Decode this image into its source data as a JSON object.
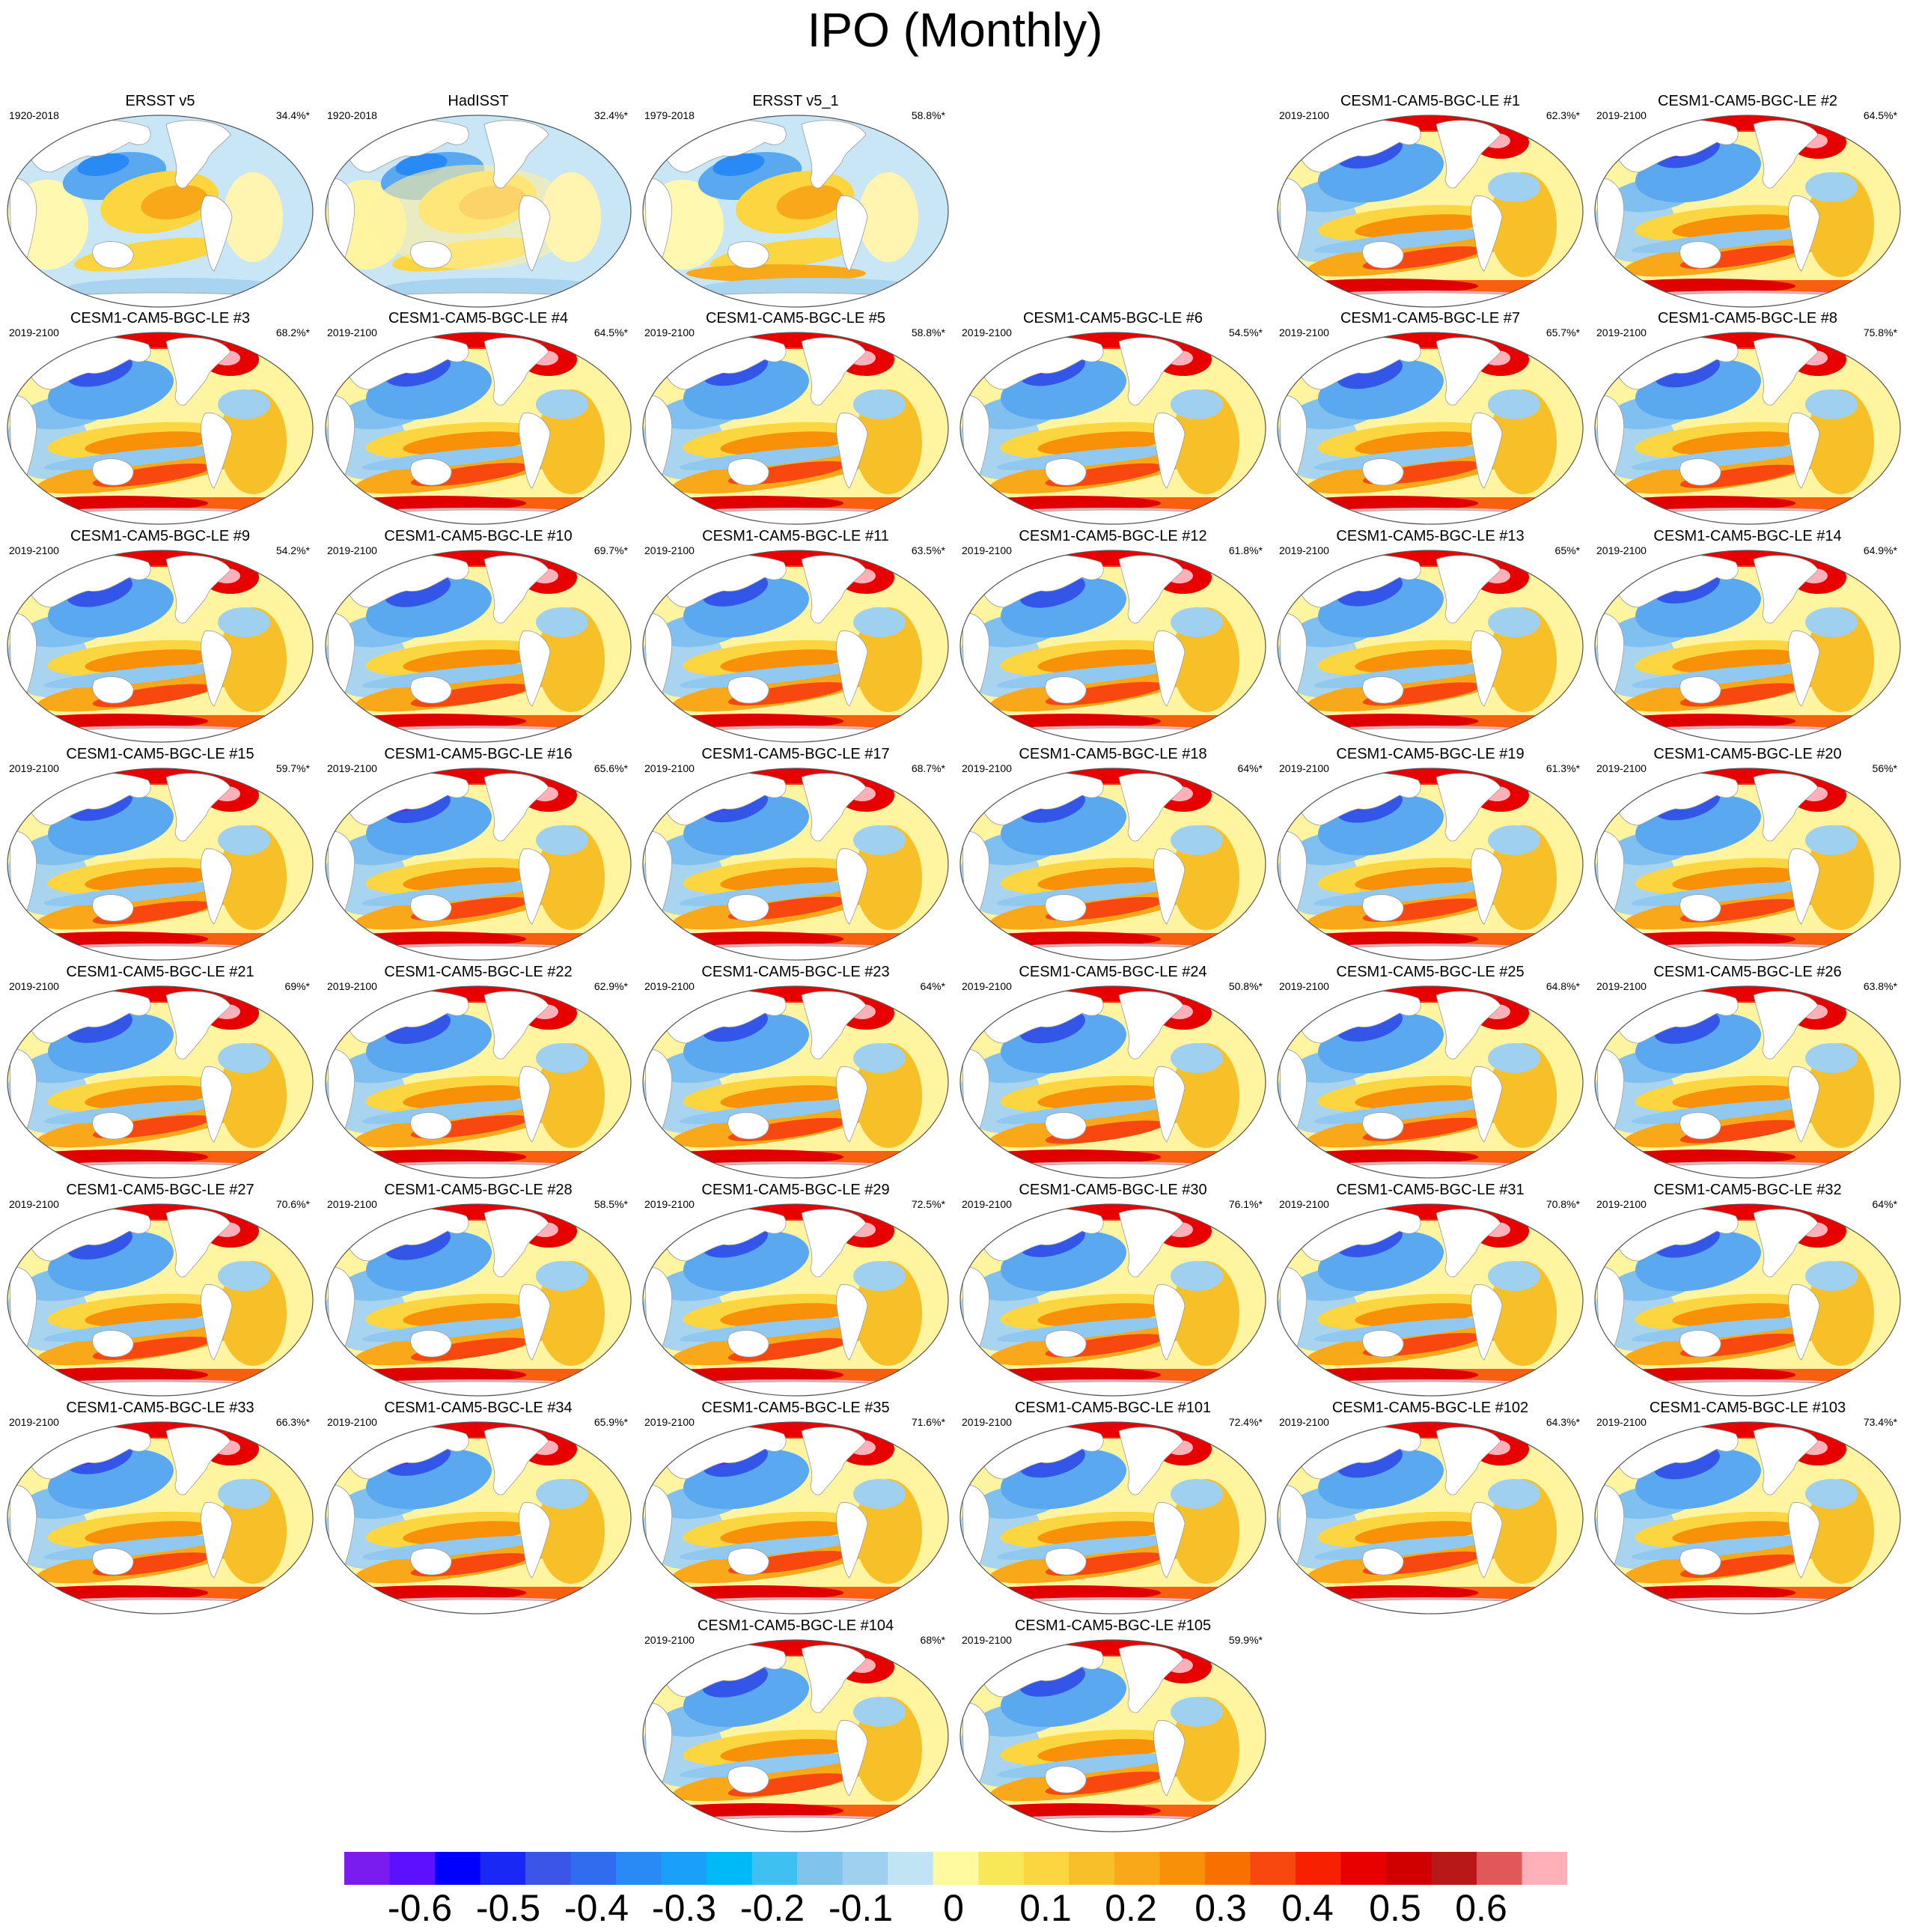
{
  "title": "IPO (Monthly)",
  "panels": [
    {
      "title": "ERSST v5",
      "period": "1920-2018",
      "pct": "34.4%*",
      "kind": "obs1"
    },
    {
      "title": "HadISST",
      "period": "1920-2018",
      "pct": "32.4%*",
      "kind": "obs2"
    },
    {
      "title": "ERSST v5_1",
      "period": "1979-2018",
      "pct": "58.8%*",
      "kind": "obs3"
    },
    {
      "title": "CESM1-CAM5-BGC-LE #1",
      "period": "2019-2100",
      "pct": "62.3%*",
      "kind": "model"
    },
    {
      "title": "CESM1-CAM5-BGC-LE #2",
      "period": "2019-2100",
      "pct": "64.5%*",
      "kind": "model"
    },
    {
      "title": "CESM1-CAM5-BGC-LE #3",
      "period": "2019-2100",
      "pct": "68.2%*",
      "kind": "model"
    },
    {
      "title": "CESM1-CAM5-BGC-LE #4",
      "period": "2019-2100",
      "pct": "64.5%*",
      "kind": "model"
    },
    {
      "title": "CESM1-CAM5-BGC-LE #5",
      "period": "2019-2100",
      "pct": "58.8%*",
      "kind": "model"
    },
    {
      "title": "CESM1-CAM5-BGC-LE #6",
      "period": "2019-2100",
      "pct": "54.5%*",
      "kind": "model"
    },
    {
      "title": "CESM1-CAM5-BGC-LE #7",
      "period": "2019-2100",
      "pct": "65.7%*",
      "kind": "model"
    },
    {
      "title": "CESM1-CAM5-BGC-LE #8",
      "period": "2019-2100",
      "pct": "75.8%*",
      "kind": "model"
    },
    {
      "title": "CESM1-CAM5-BGC-LE #9",
      "period": "2019-2100",
      "pct": "54.2%*",
      "kind": "model"
    },
    {
      "title": "CESM1-CAM5-BGC-LE #10",
      "period": "2019-2100",
      "pct": "69.7%*",
      "kind": "model"
    },
    {
      "title": "CESM1-CAM5-BGC-LE #11",
      "period": "2019-2100",
      "pct": "63.5%*",
      "kind": "model"
    },
    {
      "title": "CESM1-CAM5-BGC-LE #12",
      "period": "2019-2100",
      "pct": "61.8%*",
      "kind": "model"
    },
    {
      "title": "CESM1-CAM5-BGC-LE #13",
      "period": "2019-2100",
      "pct": "65%*",
      "kind": "model"
    },
    {
      "title": "CESM1-CAM5-BGC-LE #14",
      "period": "2019-2100",
      "pct": "64.9%*",
      "kind": "model"
    },
    {
      "title": "CESM1-CAM5-BGC-LE #15",
      "period": "2019-2100",
      "pct": "59.7%*",
      "kind": "model"
    },
    {
      "title": "CESM1-CAM5-BGC-LE #16",
      "period": "2019-2100",
      "pct": "65.6%*",
      "kind": "model"
    },
    {
      "title": "CESM1-CAM5-BGC-LE #17",
      "period": "2019-2100",
      "pct": "68.7%*",
      "kind": "model"
    },
    {
      "title": "CESM1-CAM5-BGC-LE #18",
      "period": "2019-2100",
      "pct": "64%*",
      "kind": "model"
    },
    {
      "title": "CESM1-CAM5-BGC-LE #19",
      "period": "2019-2100",
      "pct": "61.3%*",
      "kind": "model"
    },
    {
      "title": "CESM1-CAM5-BGC-LE #20",
      "period": "2019-2100",
      "pct": "56%*",
      "kind": "model"
    },
    {
      "title": "CESM1-CAM5-BGC-LE #21",
      "period": "2019-2100",
      "pct": "69%*",
      "kind": "model"
    },
    {
      "title": "CESM1-CAM5-BGC-LE #22",
      "period": "2019-2100",
      "pct": "62.9%*",
      "kind": "model"
    },
    {
      "title": "CESM1-CAM5-BGC-LE #23",
      "period": "2019-2100",
      "pct": "64%*",
      "kind": "model"
    },
    {
      "title": "CESM1-CAM5-BGC-LE #24",
      "period": "2019-2100",
      "pct": "50.8%*",
      "kind": "model"
    },
    {
      "title": "CESM1-CAM5-BGC-LE #25",
      "period": "2019-2100",
      "pct": "64.8%*",
      "kind": "model"
    },
    {
      "title": "CESM1-CAM5-BGC-LE #26",
      "period": "2019-2100",
      "pct": "63.8%*",
      "kind": "model"
    },
    {
      "title": "CESM1-CAM5-BGC-LE #27",
      "period": "2019-2100",
      "pct": "70.6%*",
      "kind": "model"
    },
    {
      "title": "CESM1-CAM5-BGC-LE #28",
      "period": "2019-2100",
      "pct": "58.5%*",
      "kind": "model"
    },
    {
      "title": "CESM1-CAM5-BGC-LE #29",
      "period": "2019-2100",
      "pct": "72.5%*",
      "kind": "model"
    },
    {
      "title": "CESM1-CAM5-BGC-LE #30",
      "period": "2019-2100",
      "pct": "76.1%*",
      "kind": "model"
    },
    {
      "title": "CESM1-CAM5-BGC-LE #31",
      "period": "2019-2100",
      "pct": "70.8%*",
      "kind": "model"
    },
    {
      "title": "CESM1-CAM5-BGC-LE #32",
      "period": "2019-2100",
      "pct": "64%*",
      "kind": "model"
    },
    {
      "title": "CESM1-CAM5-BGC-LE #33",
      "period": "2019-2100",
      "pct": "66.3%*",
      "kind": "model"
    },
    {
      "title": "CESM1-CAM5-BGC-LE #34",
      "period": "2019-2100",
      "pct": "65.9%*",
      "kind": "model"
    },
    {
      "title": "CESM1-CAM5-BGC-LE #35",
      "period": "2019-2100",
      "pct": "71.6%*",
      "kind": "model"
    },
    {
      "title": "CESM1-CAM5-BGC-LE #101",
      "period": "2019-2100",
      "pct": "72.4%*",
      "kind": "model"
    },
    {
      "title": "CESM1-CAM5-BGC-LE #102",
      "period": "2019-2100",
      "pct": "64.3%*",
      "kind": "model"
    },
    {
      "title": "CESM1-CAM5-BGC-LE #103",
      "period": "2019-2100",
      "pct": "73.4%*",
      "kind": "model"
    },
    {
      "title": "CESM1-CAM5-BGC-LE #104",
      "period": "2019-2100",
      "pct": "68%*",
      "kind": "model"
    },
    {
      "title": "CESM1-CAM5-BGC-LE #105",
      "period": "2019-2100",
      "pct": "59.9%*",
      "kind": "model"
    }
  ],
  "colorbar": {
    "colors": [
      "#7a1cf0",
      "#5c10ff",
      "#0000ff",
      "#1a28f5",
      "#3a55e8",
      "#2f6cf0",
      "#2a8af5",
      "#1aa0f8",
      "#00baf8",
      "#40c0f0",
      "#80c4ec",
      "#a0d0f0",
      "#c0e4f4",
      "#fffaa0",
      "#f8e858",
      "#fcd640",
      "#f8c028",
      "#f8a818",
      "#f89008",
      "#f87000",
      "#f84810",
      "#f82000",
      "#e80000",
      "#d00000",
      "#b81818",
      "#e05858",
      "#ffb0b8"
    ],
    "labels": [
      "-0.6",
      "-0.5",
      "-0.4",
      "-0.3",
      "-0.2",
      "-0.1",
      "0",
      "0.1",
      "0.2",
      "0.3",
      "0.4",
      "0.5",
      "0.6"
    ]
  }
}
